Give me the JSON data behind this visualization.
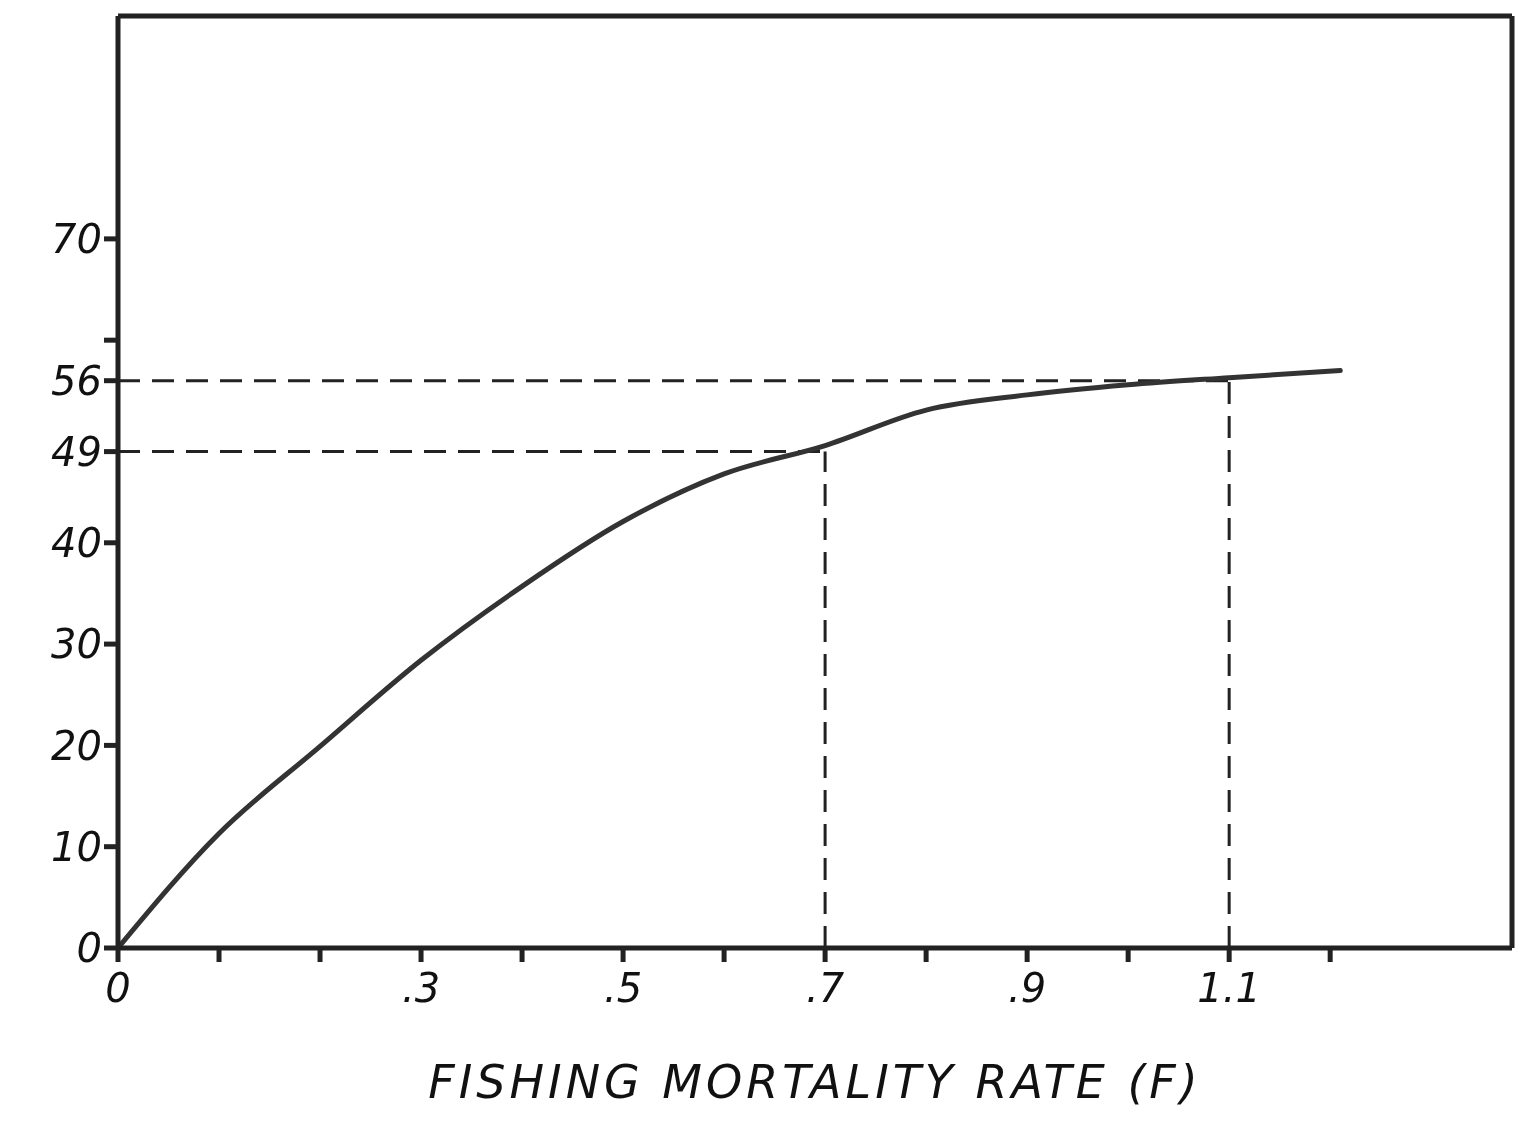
{
  "chart_data": {
    "type": "line",
    "xlabel": "FISHING MORTALITY RATE (F)",
    "x": [
      0,
      0.1,
      0.2,
      0.3,
      0.4,
      0.5,
      0.6,
      0.7,
      0.8,
      0.9,
      1.0,
      1.1,
      1.21
    ],
    "series": [
      {
        "color": "#333333",
        "values": [
          0,
          11.3,
          19.9,
          28.4,
          35.7,
          42.1,
          46.8,
          49.6,
          53.1,
          54.6,
          55.6,
          56.3,
          57.0
        ]
      }
    ],
    "xlim": [
      0,
      1.38
    ],
    "xticks": [
      {
        "value": 0,
        "label": "0"
      },
      {
        "value": 0.1,
        "label": null
      },
      {
        "value": 0.2,
        "label": null
      },
      {
        "value": 0.3,
        "label": ".3"
      },
      {
        "value": 0.4,
        "label": null
      },
      {
        "value": 0.5,
        "label": ".5"
      },
      {
        "value": 0.6,
        "label": null
      },
      {
        "value": 0.7,
        "label": ".7"
      },
      {
        "value": 0.8,
        "label": null
      },
      {
        "value": 0.9,
        "label": ".9"
      },
      {
        "value": 1.0,
        "label": null
      },
      {
        "value": 1.1,
        "label": "1.1"
      },
      {
        "value": 1.2,
        "label": null
      }
    ],
    "ylim": [
      0,
      92
    ],
    "yticks": [
      0,
      10,
      20,
      30,
      40,
      49,
      56,
      {
        "value": 60,
        "label": null
      },
      70
    ],
    "ref_lines": [
      {
        "axis": "y",
        "value": 49,
        "line_style": "dashed"
      },
      {
        "axis": "y",
        "value": 56,
        "line_style": "dashed"
      },
      {
        "axis": "x",
        "value": 0.7,
        "line_style": "dashed"
      },
      {
        "axis": "x",
        "value": 1.1,
        "line_style": "dashed"
      }
    ],
    "grid": false,
    "legend": false,
    "marker": "none",
    "line_style": "solid"
  }
}
